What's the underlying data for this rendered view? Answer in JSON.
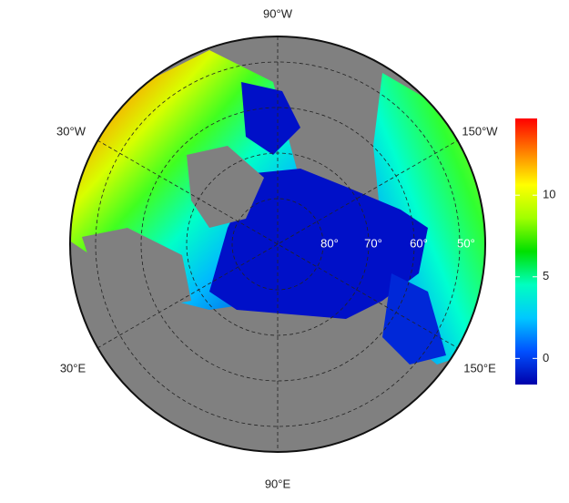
{
  "map": {
    "longitude_labels": [
      "90°W",
      "30°W",
      "150°W",
      "30°E",
      "150°E",
      "90°E"
    ],
    "latitude_labels": [
      "80°",
      "70°",
      "60°",
      "50°"
    ],
    "colorbar": {
      "lim": [
        -1.6,
        14.7
      ],
      "ticks": [
        0,
        5,
        10
      ],
      "colors": [
        "#0000aa",
        "#0050ff",
        "#00c8ff",
        "#00ffc0",
        "#00e000",
        "#a0ff00",
        "#ffff00",
        "#ff8000",
        "#ff0000"
      ]
    }
  }
}
